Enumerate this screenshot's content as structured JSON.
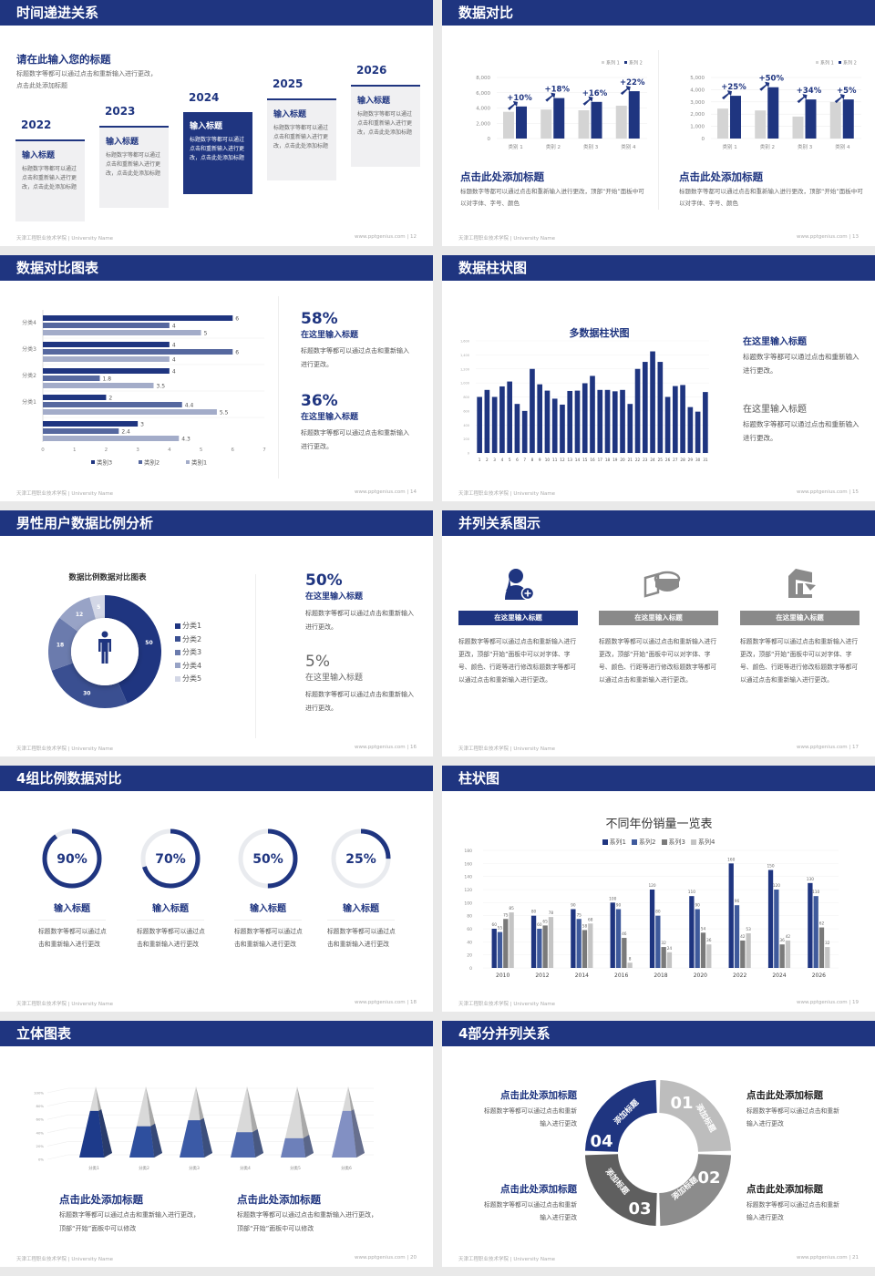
{
  "theme": {
    "navy": "#1f3580",
    "gray": "#8a8a8a",
    "light_gray": "#c8c8c8",
    "background": "#e9e9e9"
  },
  "footer": {
    "left": "天津工程职业技术学院 | University Name",
    "site": "www.pptgenius.com"
  },
  "slides": {
    "s12": {
      "title": "时间递进关系",
      "page": "| 12",
      "heading": "请在此输入您的标题",
      "desc": "标题数字等都可以通过点击和重新输入进行更改，点击此处添加标题",
      "items": [
        {
          "year": "2022",
          "title": "输入标题",
          "text": "标题数字等都可以通过点击和重新输入进行更改，点击此处添加标题"
        },
        {
          "year": "2023",
          "title": "输入标题",
          "text": "标题数字等都可以通过点击和重新输入进行更改，点击此处添加标题"
        },
        {
          "year": "2024",
          "title": "输入标题",
          "text": "标题数字等都可以通过点击和重新输入进行更改，点击此处添加标题"
        },
        {
          "year": "2025",
          "title": "输入标题",
          "text": "标题数字等都可以通过点击和重新输入进行更改，点击此处添加标题"
        },
        {
          "year": "2026",
          "title": "输入标题",
          "text": "标题数字等都可以通过点击和重新输入进行更改，点击此处添加标题"
        }
      ]
    },
    "s13": {
      "title": "数据对比",
      "page": "| 13",
      "panels": [
        {
          "heading": "点击此处添加标题",
          "desc": "标题数字等都可以通过点击和重新输入进行更改，顶部“开始”面板中可以对字体、字号、颜色"
        },
        {
          "heading": "点击此处添加标题",
          "desc": "标题数字等都可以通过点击和重新输入进行更改，顶部“开始”面板中可以对字体、字号、颜色"
        }
      ]
    },
    "s14": {
      "title": "数据对比图表",
      "page": "| 14",
      "stats": [
        {
          "value": "58%",
          "title": "在这里输入标题",
          "text": "标题数字等都可以通过点击和重新输入进行更改。"
        },
        {
          "value": "36%",
          "title": "在这里输入标题",
          "text": "标题数字等都可以通过点击和重新输入进行更改。"
        }
      ]
    },
    "s15": {
      "title": "数据柱状图",
      "page": "| 15",
      "items": [
        {
          "title": "在这里输入标题",
          "text": "标题数字等都可以通过点击和重新输入进行更改。"
        },
        {
          "title": "在这里输入标题",
          "text": "标题数字等都可以通过点击和重新输入进行更改。"
        }
      ]
    },
    "s16": {
      "title": "男性用户数据比例分析",
      "page": "| 16",
      "center_icon": "male-person-icon",
      "stats": [
        {
          "value": "50%",
          "title": "在这里输入标题",
          "text": "标题数字等都可以通过点击和重新输入进行更改。"
        },
        {
          "value": "5%",
          "title": "在这里输入标题",
          "text": "标题数字等都可以通过点击和重新输入进行更改。"
        }
      ]
    },
    "s17": {
      "title": "并列关系图示",
      "page": "| 17",
      "columns": [
        {
          "icon": "user-add-icon",
          "label": "在这里输入标题",
          "text": "标题数字等都可以通过点击和重新输入进行更改，顶部“开始”面板中可以对字体、字号、颜色、行距等进行修改标题数字等都可以通过点击和重新输入进行更改。",
          "color": "#1f3580"
        },
        {
          "icon": "pie-3d-icon",
          "label": "在这里输入标题",
          "text": "标题数字等都可以通过点击和重新输入进行更改，顶部“开始”面板中可以对字体、字号、颜色、行距等进行修改标题数字等都可以通过点击和重新输入进行更改。",
          "color": "#8a8a8a"
        },
        {
          "icon": "building-icon",
          "label": "在这里输入标题",
          "text": "标题数字等都可以通过点击和重新输入进行更改，顶部“开始”面板中可以对字体、字号、颜色、行距等进行修改标题数字等都可以通过点击和重新输入进行更改。",
          "color": "#8a8a8a"
        }
      ]
    },
    "s18": {
      "title": "4组比例数据对比",
      "page": "| 18",
      "rings": [
        {
          "percent": 90,
          "label": "90%",
          "title": "输入标题",
          "text": "标题数字等都可以通过点击和重新输入进行更改"
        },
        {
          "percent": 70,
          "label": "70%",
          "title": "输入标题",
          "text": "标题数字等都可以通过点击和重新输入进行更改"
        },
        {
          "percent": 50,
          "label": "50%",
          "title": "输入标题",
          "text": "标题数字等都可以通过点击和重新输入进行更改"
        },
        {
          "percent": 25,
          "label": "25%",
          "title": "输入标题",
          "text": "标题数字等都可以通过点击和重新输入进行更改"
        }
      ]
    },
    "s19": {
      "title": "柱状图",
      "page": "| 19"
    },
    "s20": {
      "title": "立体图表",
      "page": "| 20",
      "blocks": [
        {
          "heading": "点击此处添加标题",
          "text": "标题数字等都可以通过点击和重新输入进行更改，顶部“开始”面板中可以修改"
        },
        {
          "heading": "点击此处添加标题",
          "text": "标题数字等都可以通过点击和重新输入进行更改，顶部“开始”面板中可以修改"
        }
      ]
    },
    "s21": {
      "title": "4部分并列关系",
      "page": "| 21",
      "segments": [
        {
          "number": "01",
          "label": "添加标题",
          "color": "#bdbdbd"
        },
        {
          "number": "02",
          "label": "添加标题",
          "color": "#8c8c8c"
        },
        {
          "number": "03",
          "label": "添加标题",
          "color": "#5f5f5f"
        },
        {
          "number": "04",
          "label": "添加标题",
          "color": "#1f3580"
        }
      ],
      "blocks": [
        {
          "heading": "点击此处添加标题",
          "text": "标题数字等都可以通过点击和重新输入进行更改"
        },
        {
          "heading": "点击此处添加标题",
          "text": "标题数字等都可以通过点击和重新输入进行更改"
        },
        {
          "heading": "点击此处添加标题",
          "text": "标题数字等都可以通过点击和重新输入进行更改"
        },
        {
          "heading": "点击此处添加标题",
          "text": "标题数字等都可以通过点击和重新输入进行更改"
        }
      ]
    }
  },
  "chart_data": [
    {
      "type": "bar",
      "categories": [
        "类别 1",
        "类别 2",
        "类别 3",
        "类别 4"
      ],
      "series": [
        {
          "name": "系列 1",
          "values": [
            3500,
            3800,
            3700,
            4300
          ],
          "color": "#d4d4d4"
        },
        {
          "name": "系列 2",
          "values": [
            4200,
            5300,
            4800,
            6200
          ],
          "color": "#1f3580"
        }
      ],
      "ylim": [
        0,
        8000
      ],
      "yticks": [
        "0",
        "2,000",
        "4,000",
        "6,000",
        "8,000"
      ],
      "annotations": [
        "+10%",
        "+18%",
        "+16%",
        "+22%"
      ],
      "legend": "top-right",
      "grid": true
    },
    {
      "type": "bar",
      "categories": [
        "类别 1",
        "类别 2",
        "类别 3",
        "类别 4"
      ],
      "series": [
        {
          "name": "系列 1",
          "values": [
            2450,
            2300,
            1800,
            3000
          ],
          "color": "#d4d4d4"
        },
        {
          "name": "系列 2",
          "values": [
            3500,
            4200,
            3200,
            3200
          ],
          "color": "#1f3580"
        }
      ],
      "ylim": [
        0,
        5000
      ],
      "yticks": [
        "0",
        "1,000",
        "2,000",
        "3,000",
        "4,000",
        "5,000"
      ],
      "annotations": [
        "+25%",
        "+50%",
        "+34%",
        "+5%"
      ],
      "legend": "top-right",
      "grid": true
    },
    {
      "type": "bar",
      "orientation": "horizontal",
      "categories": [
        "分类4",
        "分类3",
        "分类2",
        "分类1",
        ""
      ],
      "series": [
        {
          "name": "类别3",
          "values": [
            6,
            4,
            4,
            2,
            3
          ],
          "color": "#1f3580"
        },
        {
          "name": "类别2",
          "values": [
            4,
            6,
            1.8,
            4.4,
            2.4
          ],
          "color": "#56689f"
        },
        {
          "name": "类别1",
          "values": [
            5,
            4,
            3.5,
            5.5,
            4.3
          ],
          "color": "#a3acc9"
        }
      ],
      "xlim": [
        0,
        7
      ],
      "xticks": [
        "0",
        "1",
        "2",
        "3",
        "4",
        "5",
        "6",
        "7"
      ],
      "legend": "bottom"
    },
    {
      "type": "bar",
      "title": "多数据柱状图",
      "categories": [
        "1",
        "2",
        "3",
        "4",
        "5",
        "6",
        "7",
        "8",
        "9",
        "10",
        "11",
        "12",
        "13",
        "14",
        "15",
        "16",
        "17",
        "18",
        "19",
        "20",
        "21",
        "22",
        "23",
        "24",
        "25",
        "26",
        "27",
        "28",
        "29",
        "30",
        "31"
      ],
      "values": [
        800,
        900,
        800,
        950,
        1020,
        700,
        600,
        1200,
        980,
        890,
        775,
        690,
        885,
        890,
        995,
        1100,
        900,
        900,
        880,
        900,
        700,
        1200,
        1300,
        1450,
        1300,
        800,
        955,
        970,
        655,
        590,
        870
      ],
      "ylim": [
        0,
        1600
      ],
      "yticks": [
        "0",
        "200",
        "400",
        "600",
        "800",
        "1,000",
        "1,200",
        "1,400",
        "1,600"
      ],
      "color": "#1f3580"
    },
    {
      "type": "pie",
      "variant": "donut",
      "title": "数据比例数据对比图表",
      "categories": [
        "分类1",
        "分类2",
        "分类3",
        "分类4",
        "分类5"
      ],
      "values": [
        50,
        30,
        18,
        12,
        5
      ],
      "colors": [
        "#1f3580",
        "#3a4f91",
        "#6b7bad",
        "#98a3c6",
        "#d3d7e6"
      ],
      "legend": "right"
    },
    {
      "type": "bar",
      "title": "不同年份销量一览表",
      "categories": [
        "2010",
        "2012",
        "2014",
        "2016",
        "2018",
        "2020",
        "2022",
        "2024",
        "2026"
      ],
      "series": [
        {
          "name": "系列1",
          "values": [
            60,
            80,
            90,
            100,
            120,
            110,
            160,
            150,
            130
          ],
          "color": "#1f3580"
        },
        {
          "name": "系列2",
          "values": [
            55,
            60,
            75,
            90,
            80,
            90,
            96,
            120,
            110
          ],
          "color": "#3f5a9c"
        },
        {
          "name": "系列3",
          "values": [
            75,
            65,
            58,
            46,
            32,
            54,
            42,
            36,
            62
          ],
          "color": "#7a7a7a"
        },
        {
          "name": "系列4",
          "values": [
            85,
            78,
            68,
            8,
            24,
            36,
            53,
            42,
            32
          ],
          "color": "#c4c4c4"
        }
      ],
      "ylim": [
        0,
        180
      ],
      "yticks": [
        "0",
        "20",
        "40",
        "60",
        "80",
        "100",
        "120",
        "140",
        "160",
        "180"
      ],
      "legend": "top",
      "data_labels": true
    },
    {
      "type": "bar",
      "variant": "3d-pyramid",
      "categories": [
        "分类1",
        "分类2",
        "分类3",
        "分类4",
        "分类5",
        "分类6"
      ],
      "values": [
        70,
        47,
        56,
        38,
        29,
        70
      ],
      "ylim": [
        0,
        100
      ],
      "yticks": [
        "0%",
        "20%",
        "40%",
        "60%",
        "80%",
        "100%"
      ],
      "colors": [
        "#1d3a8a",
        "#2e4f9e",
        "#3b5aa6",
        "#4f69ad",
        "#6d80ba",
        "#8290c3"
      ]
    }
  ]
}
